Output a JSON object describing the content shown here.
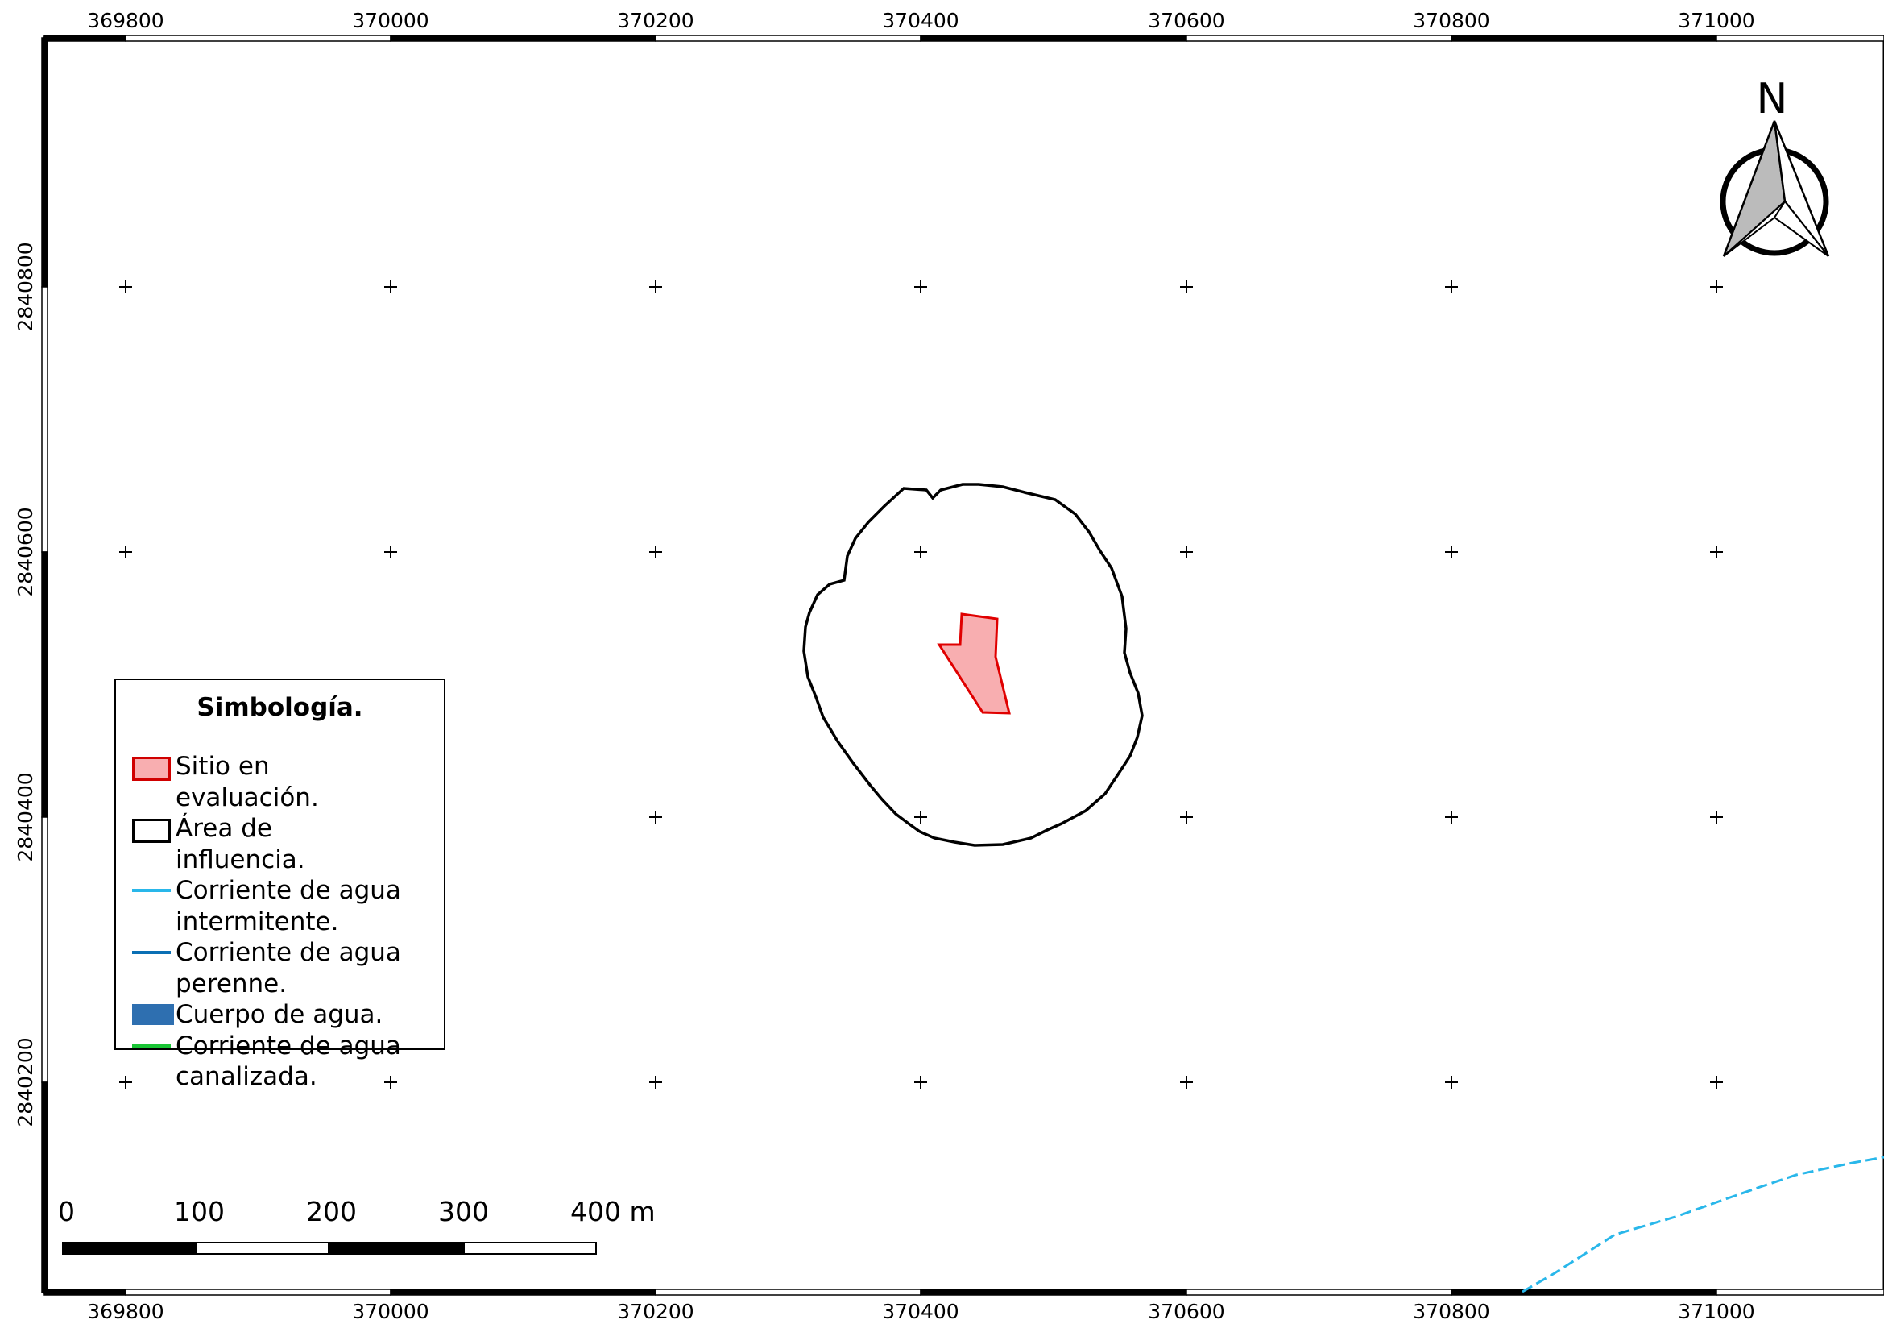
{
  "map": {
    "x_labels": [
      "369800",
      "370000",
      "370200",
      "370400",
      "370600",
      "370800",
      "371000"
    ],
    "y_labels": [
      "2840800",
      "2840600",
      "2840400",
      "2840200"
    ],
    "north_label": "N",
    "colors": {
      "site_fill": "#f8aeb0",
      "site_stroke": "#d00000",
      "influence": "#000000",
      "intermittent": "#29b7ea",
      "perennial": "#0a6fb4",
      "water_body": "#2e6fb0",
      "channelized": "#19c535"
    }
  },
  "legend": {
    "title": "Simbología.",
    "items": [
      {
        "symbol": "site-polygon",
        "label": "Sitio en evaluación."
      },
      {
        "symbol": "influence-polygon",
        "label": "Área de influencia."
      },
      {
        "symbol": "intermittent-line",
        "label": "Corriente de agua\nintermitente."
      },
      {
        "symbol": "perennial-line",
        "label": "Corriente de agua\nperenne."
      },
      {
        "symbol": "water-body",
        "label": "Cuerpo de agua."
      },
      {
        "symbol": "channelized-line",
        "label": "Corriente de agua\ncanalizada."
      }
    ]
  },
  "scale_bar": {
    "labels": [
      "0",
      "100",
      "200",
      "300",
      "400 m"
    ]
  }
}
